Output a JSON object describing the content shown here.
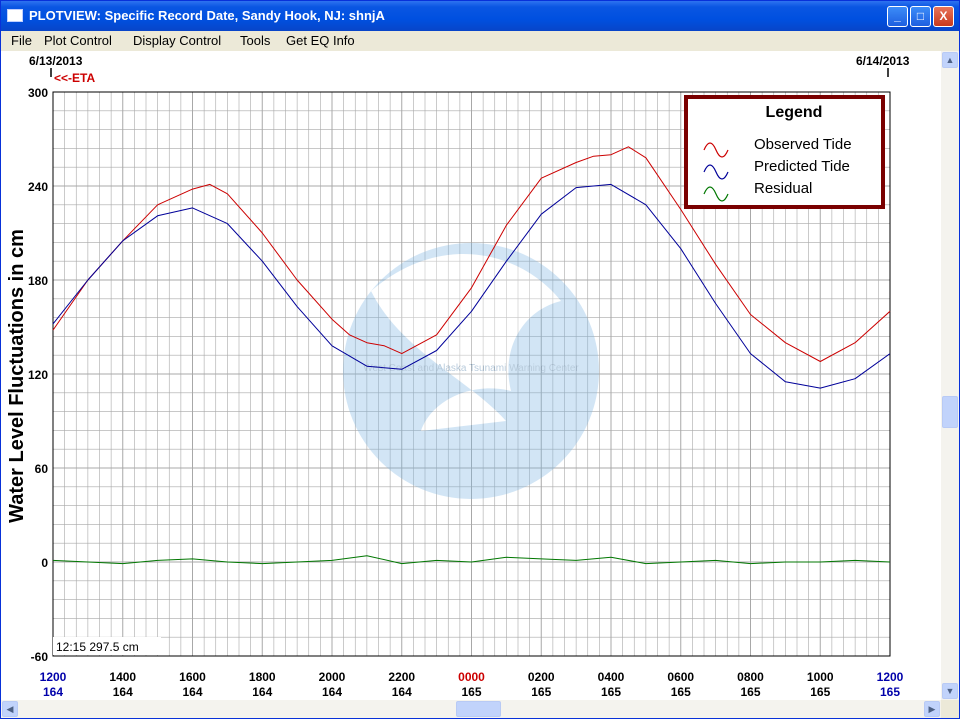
{
  "window": {
    "title": "PLOTVIEW: Specific Record Date, Sandy Hook, NJ: shnjA",
    "min_label": "_",
    "max_label": "□",
    "close_label": "X"
  },
  "menu": [
    "File",
    "Plot Control",
    "Display Control",
    "Tools",
    "Get EQ Info"
  ],
  "header": {
    "date_left": "6/13/2013",
    "date_right": "6/14/2013",
    "eta_label": "<<-ETA"
  },
  "readout": "12:15 297.5 cm",
  "watermark_text": "West Coast and Alaska Tsunami Warning Center",
  "colors": {
    "observed": "#CC0000",
    "predicted": "#000099",
    "residual": "#007700",
    "grid": "#A8A8A8",
    "legend_border": "#7A0000",
    "midnight_tick": "#CC0000",
    "blue_tick": "#0000AA"
  },
  "chart_data": {
    "type": "line",
    "title": "",
    "xlabel": "",
    "ylabel": "Water Level Fluctuations in cm",
    "ylim": [
      -60,
      300
    ],
    "yticks": [
      300,
      240,
      180,
      120,
      60,
      0,
      -60
    ],
    "x_hours_range": [
      12,
      36
    ],
    "x_ticks": [
      {
        "time": "1200",
        "day": "164"
      },
      {
        "time": "1400",
        "day": "164"
      },
      {
        "time": "1600",
        "day": "164"
      },
      {
        "time": "1800",
        "day": "164"
      },
      {
        "time": "2000",
        "day": "164"
      },
      {
        "time": "2200",
        "day": "164"
      },
      {
        "time": "0000",
        "day": "165"
      },
      {
        "time": "0200",
        "day": "165"
      },
      {
        "time": "0400",
        "day": "165"
      },
      {
        "time": "0600",
        "day": "165"
      },
      {
        "time": "0800",
        "day": "165"
      },
      {
        "time": "1000",
        "day": "165"
      },
      {
        "time": "1200",
        "day": "165"
      }
    ],
    "grid": true,
    "legend_position": "top-right",
    "legend": {
      "title": "Legend",
      "entries": [
        "Observed Tide",
        "Predicted Tide",
        "Residual"
      ]
    },
    "series": [
      {
        "name": "Observed Tide",
        "x": [
          12,
          13,
          14,
          15,
          16,
          16.5,
          17,
          18,
          19,
          20,
          20.5,
          21,
          21.5,
          22,
          23,
          24,
          25,
          26,
          27,
          27.5,
          28,
          28.5,
          29,
          30,
          31,
          32,
          33,
          34,
          35,
          36
        ],
        "y": [
          148,
          180,
          205,
          228,
          238,
          241,
          235,
          210,
          180,
          155,
          145,
          140,
          138,
          133,
          145,
          175,
          215,
          245,
          255,
          259,
          260,
          265,
          258,
          225,
          190,
          158,
          140,
          128,
          140,
          160
        ]
      },
      {
        "name": "Predicted Tide",
        "x": [
          12,
          13,
          14,
          15,
          16,
          17,
          18,
          19,
          20,
          21,
          22,
          23,
          24,
          25,
          26,
          27,
          28,
          29,
          30,
          31,
          32,
          33,
          34,
          35,
          36
        ],
        "y": [
          152,
          180,
          205,
          221,
          226,
          216,
          192,
          163,
          138,
          125,
          123,
          135,
          160,
          192,
          222,
          239,
          241,
          228,
          200,
          165,
          133,
          115,
          111,
          117,
          133
        ]
      },
      {
        "name": "Residual",
        "x": [
          12,
          13,
          14,
          15,
          16,
          17,
          18,
          19,
          20,
          21,
          22,
          23,
          24,
          25,
          26,
          27,
          28,
          29,
          30,
          31,
          32,
          33,
          34,
          35,
          36
        ],
        "y": [
          1,
          0,
          -1,
          1,
          2,
          0,
          -1,
          0,
          1,
          4,
          -1,
          1,
          0,
          3,
          2,
          1,
          3,
          -1,
          0,
          1,
          -1,
          0,
          0,
          1,
          0
        ]
      }
    ]
  }
}
